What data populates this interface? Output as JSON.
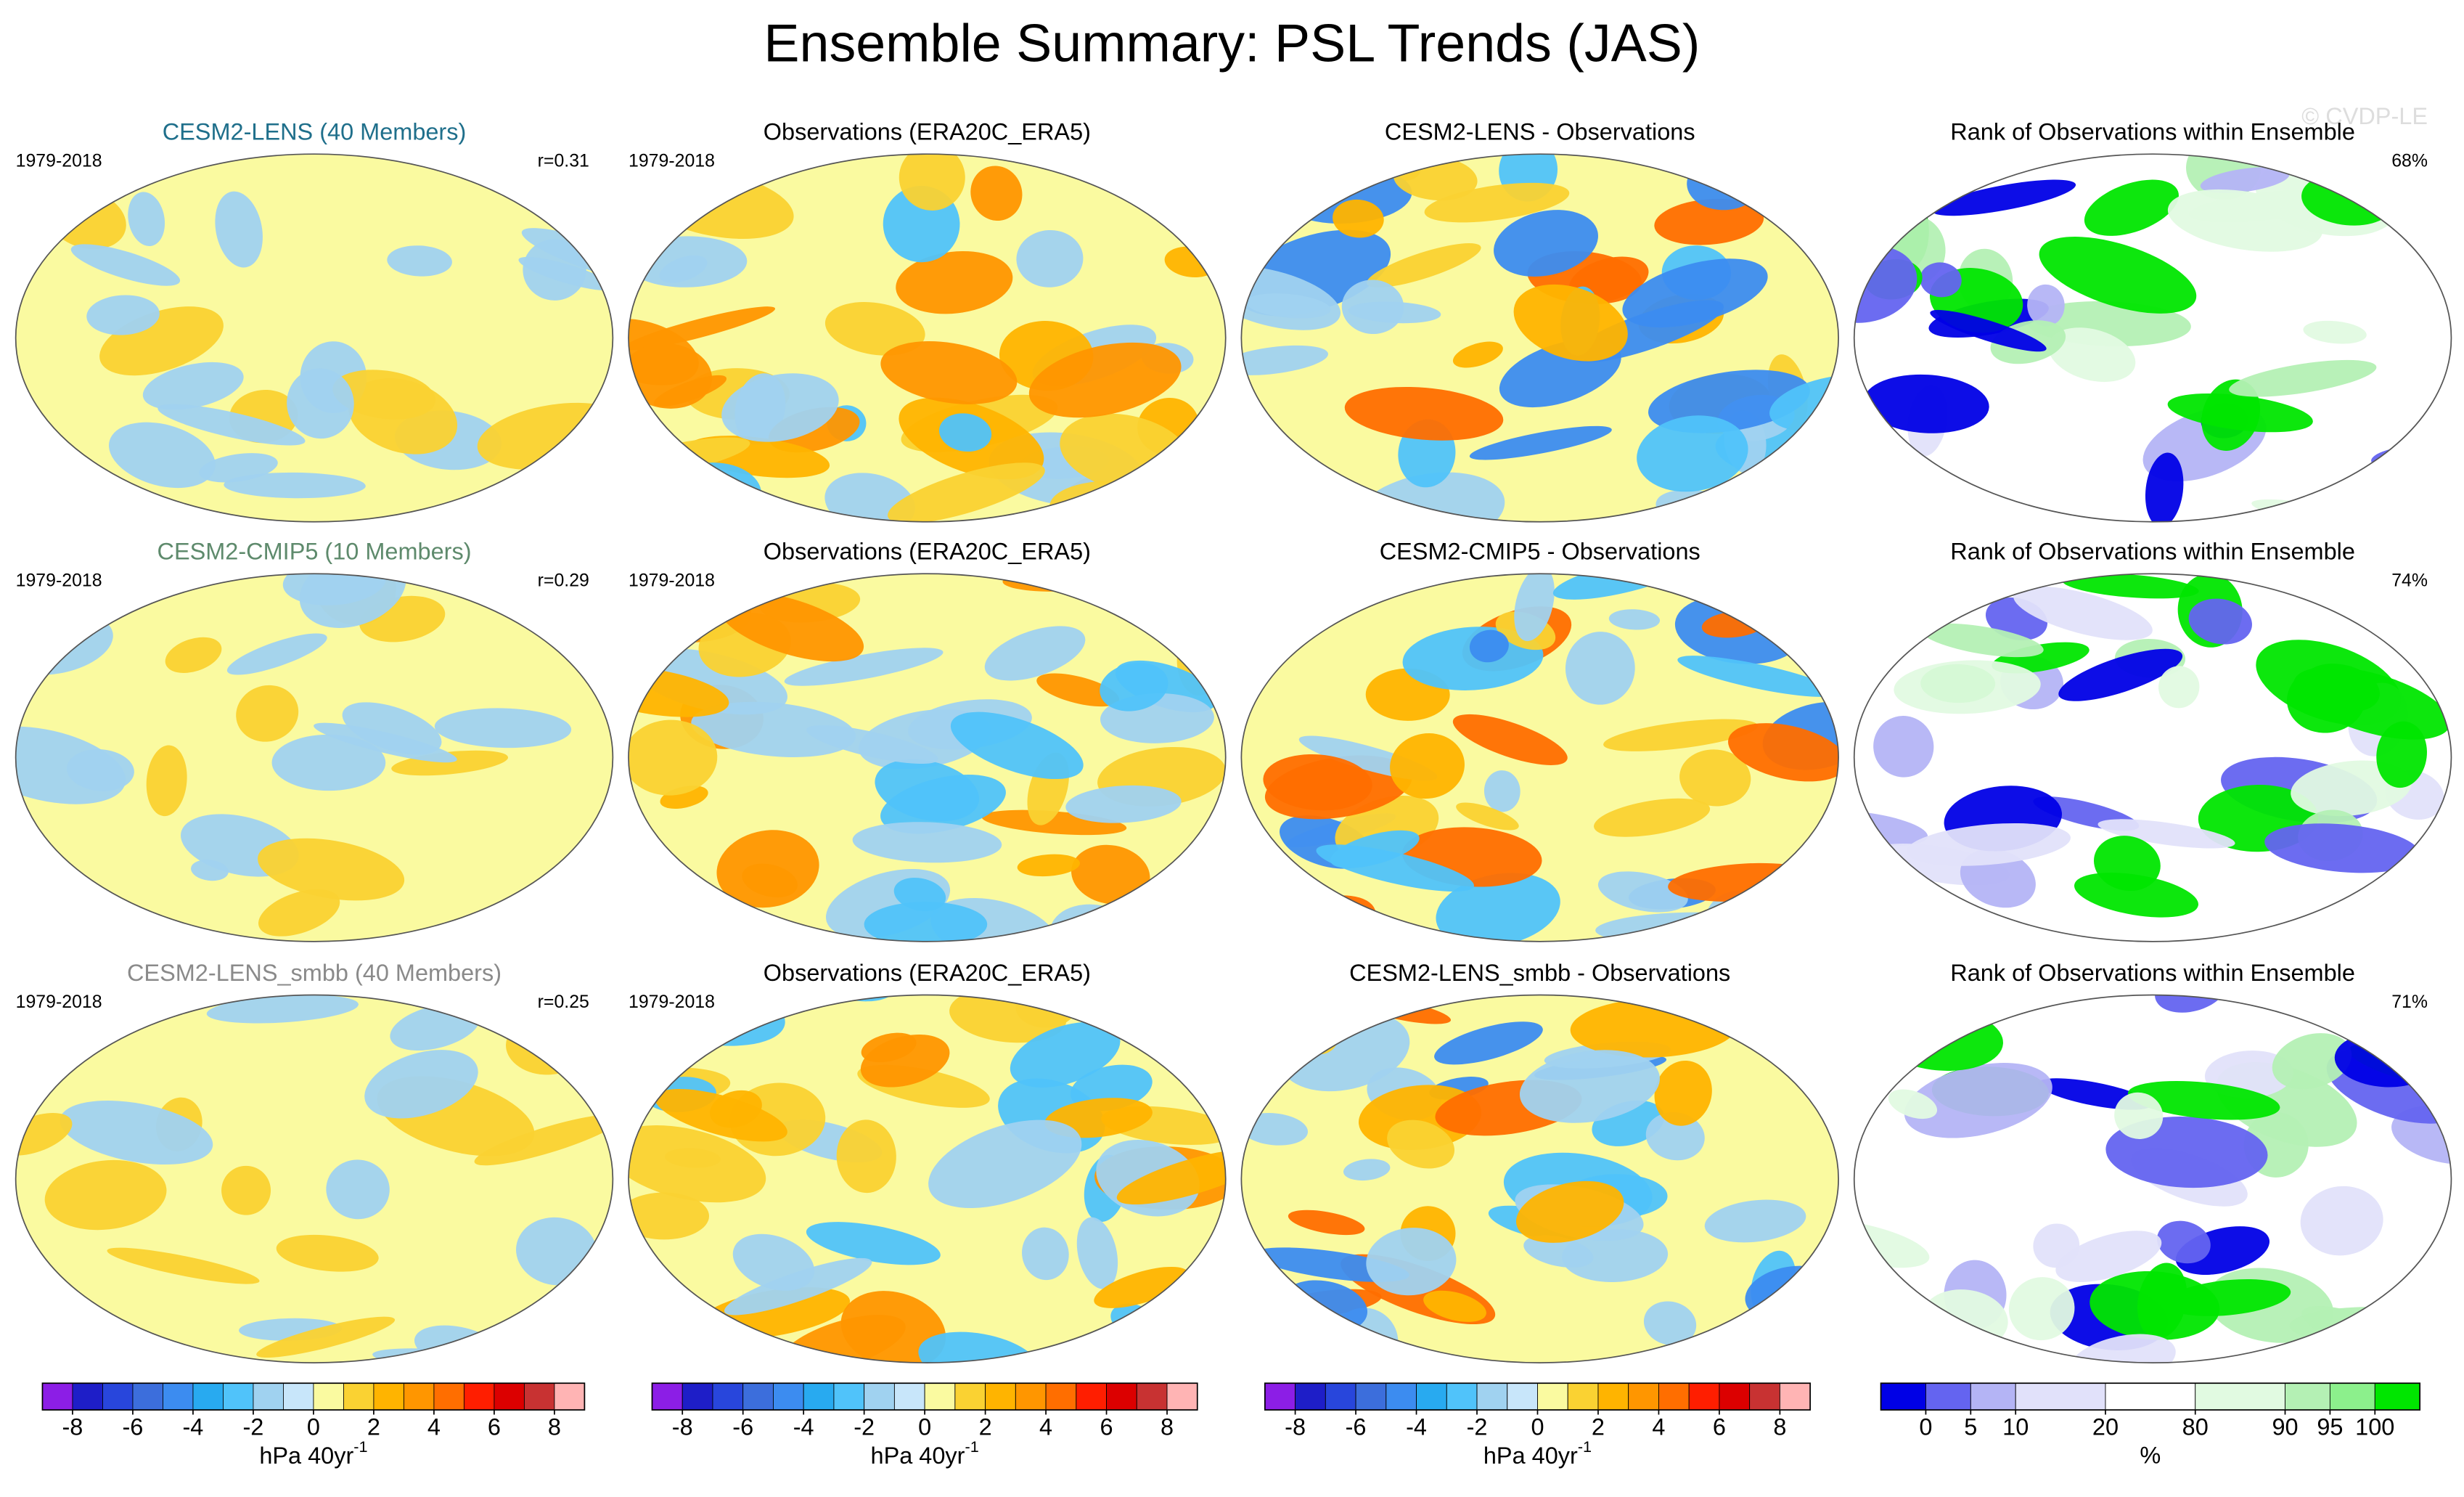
{
  "title": "Ensemble Summary: PSL Trends (JAS)",
  "watermark": "© CVDP-LE",
  "rows": [
    {
      "panels": [
        {
          "title": "CESM2-LENS (40 Members)",
          "title_color": "#1f6f8b",
          "left": "1979-2018",
          "right": "r=0.31"
        },
        {
          "title": "Observations (ERA20C_ERA5)",
          "left": "1979-2018"
        },
        {
          "title": "CESM2-LENS - Observations"
        },
        {
          "title": "Rank of Observations within Ensemble",
          "right": "68%"
        }
      ]
    },
    {
      "panels": [
        {
          "title": "CESM2-CMIP5 (10 Members)",
          "title_color": "#5e8a6c",
          "left": "1979-2018",
          "right": "r=0.29"
        },
        {
          "title": "Observations (ERA20C_ERA5)",
          "left": "1979-2018"
        },
        {
          "title": "CESM2-CMIP5 - Observations"
        },
        {
          "title": "Rank of Observations within Ensemble",
          "right": "74%"
        }
      ]
    },
    {
      "panels": [
        {
          "title": "CESM2-LENS_smbb (40 Members)",
          "title_color": "#8a8a8a",
          "left": "1979-2018",
          "right": "r=0.25"
        },
        {
          "title": "Observations (ERA20C_ERA5)",
          "left": "1979-2018"
        },
        {
          "title": "CESM2-LENS_smbb - Observations"
        },
        {
          "title": "Rank of Observations within Ensemble",
          "right": "71%"
        }
      ]
    }
  ],
  "colorbars": [
    {
      "colors": [
        "#8c1ee6",
        "#1e1ec8",
        "#2846dc",
        "#3c6edc",
        "#3c8cf0",
        "#28aaf0",
        "#50c3fa",
        "#a0d2f0",
        "#c8e6fa",
        "#fafaa0",
        "#fad232",
        "#ffb400",
        "#ff9600",
        "#ff6e00",
        "#ff1e00",
        "#dc0000",
        "#c83232",
        "#ffb4b4"
      ],
      "lim": [
        -9,
        9
      ],
      "ticks": [
        -8,
        -6,
        -4,
        -2,
        0,
        2,
        4,
        6,
        8
      ],
      "unit": "hPa 40yr",
      "unit_sup": "-1"
    },
    {
      "colors": [
        "#8c1ee6",
        "#1e1ec8",
        "#2846dc",
        "#3c6edc",
        "#3c8cf0",
        "#28aaf0",
        "#50c3fa",
        "#a0d2f0",
        "#c8e6fa",
        "#fafaa0",
        "#fad232",
        "#ffb400",
        "#ff9600",
        "#ff6e00",
        "#ff1e00",
        "#dc0000",
        "#c83232",
        "#ffb4b4"
      ],
      "lim": [
        -9,
        9
      ],
      "ticks": [
        -8,
        -6,
        -4,
        -2,
        0,
        2,
        4,
        6,
        8
      ],
      "unit": "hPa 40yr",
      "unit_sup": "-1"
    },
    {
      "colors": [
        "#8c1ee6",
        "#1e1ec8",
        "#2846dc",
        "#3c6edc",
        "#3c8cf0",
        "#28aaf0",
        "#50c3fa",
        "#a0d2f0",
        "#c8e6fa",
        "#fafaa0",
        "#fad232",
        "#ffb400",
        "#ff9600",
        "#ff6e00",
        "#ff1e00",
        "#dc0000",
        "#c83232",
        "#ffb4b4"
      ],
      "lim": [
        -9,
        9
      ],
      "ticks": [
        -8,
        -6,
        -4,
        -2,
        0,
        2,
        4,
        6,
        8
      ],
      "unit": "hPa 40yr",
      "unit_sup": "-1"
    },
    {
      "colors": [
        "#0000e6",
        "#6464f0",
        "#b4b4f5",
        "#e1e1fa",
        "#ffffff",
        "#e1fae1",
        "#b4f0b4",
        "#8cf08c",
        "#00e600"
      ],
      "ticks": [
        0,
        5,
        10,
        20,
        80,
        90,
        95,
        100
      ],
      "unit": "%"
    }
  ]
}
